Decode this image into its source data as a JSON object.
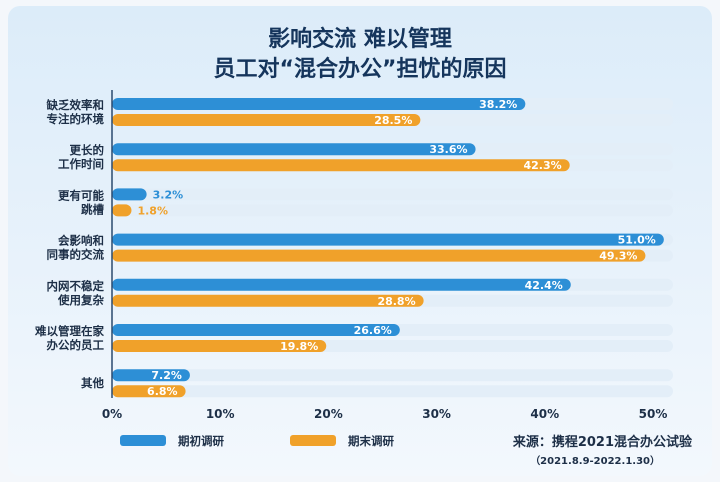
{
  "chart_data": {
    "type": "bar",
    "orientation": "horizontal",
    "title": [
      "影响交流 难以管理",
      "员工对“混合办公”担忧的原因"
    ],
    "categories": [
      [
        "缺乏效率和",
        "专注的环境"
      ],
      [
        "更长的",
        "工作时间"
      ],
      [
        "更有可能",
        "跳槽"
      ],
      [
        "会影响和",
        "同事的交流"
      ],
      [
        "内网不稳定",
        "使用复杂"
      ],
      [
        "难以管理在家",
        "办公的员工"
      ],
      [
        "其他"
      ]
    ],
    "series": [
      {
        "name": "期初调研",
        "color": "#2d8fd6",
        "values": [
          38.2,
          33.6,
          3.2,
          51.0,
          42.4,
          26.6,
          7.2
        ],
        "labels": [
          "38.2%",
          "33.6%",
          "3.2%",
          "51.0%",
          "42.4%",
          "26.6%",
          "7.2%"
        ]
      },
      {
        "name": "期末调研",
        "color": "#f0a12a",
        "values": [
          28.5,
          42.3,
          1.8,
          49.3,
          28.8,
          19.8,
          6.8
        ],
        "labels": [
          "28.5%",
          "42.3%",
          "1.8%",
          "49.3%",
          "28.8%",
          "19.8%",
          "6.8%"
        ]
      }
    ],
    "xlim": [
      0,
      50
    ],
    "ticks": [
      0,
      10,
      20,
      30,
      40,
      50
    ],
    "tick_labels": [
      "0%",
      "10%",
      "20%",
      "30%",
      "40%",
      "50%"
    ],
    "track_color": "#e3eef8",
    "legend_placement": "bottom-left",
    "source": "来源：携程2021混合办公试验",
    "period": "（2021.8.9-2022.1.30）"
  }
}
